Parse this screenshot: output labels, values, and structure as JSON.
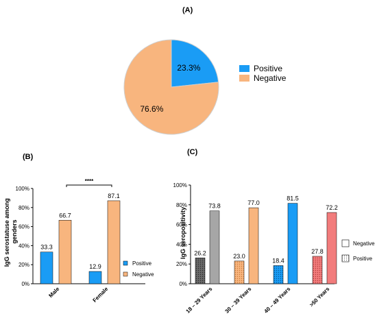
{
  "colors": {
    "positive": "#1a9cf5",
    "negative": "#f8b57e",
    "grey": "#a6a6a6",
    "pink": "#f27c7c"
  },
  "chart_data": [
    {
      "type": "pie",
      "panel": "(A)",
      "categories": [
        "Positive",
        "Negative"
      ],
      "values": [
        23.3,
        76.6
      ],
      "labels": [
        "23.3%",
        "76.6%"
      ],
      "legend": [
        "Positive",
        "Negative"
      ],
      "legend_position": "right"
    },
    {
      "type": "bar",
      "panel": "(B)",
      "categories": [
        "Male",
        "Female"
      ],
      "series": [
        {
          "name": "Positive",
          "values": [
            33.3,
            12.9
          ],
          "labels": [
            "33.3",
            "12.9"
          ]
        },
        {
          "name": "Negative",
          "values": [
            66.7,
            87.1
          ],
          "labels": [
            "66.7",
            "87.1"
          ]
        }
      ],
      "ylabel": "IgG serostatuse among genders",
      "ylim": [
        0,
        100
      ],
      "yticks": [
        "0%",
        "20%",
        "40%",
        "60%",
        "80%",
        "100%"
      ],
      "significance": "****",
      "legend_position": "right"
    },
    {
      "type": "bar",
      "panel": "(C)",
      "categories": [
        "18 – 29 Years",
        "30 – 39 Years",
        "40 – 49 Years",
        ">50 Years"
      ],
      "series": [
        {
          "name": "Positive",
          "values": [
            26.2,
            23.0,
            18.4,
            27.8
          ],
          "labels": [
            "26.2",
            "23.0",
            "18.4",
            "27.8"
          ]
        },
        {
          "name": "Negative",
          "values": [
            73.8,
            77.0,
            81.5,
            72.2
          ],
          "labels": [
            "73.8",
            "77.0",
            "81.5",
            "72.2"
          ]
        }
      ],
      "ylabel": "IgG seropositivity",
      "ylim": [
        0,
        100
      ],
      "yticks": [
        "0%",
        "20%",
        "40%",
        "60%",
        "80%",
        "100%"
      ],
      "legend": [
        "Negative",
        "Positive"
      ],
      "legend_position": "right"
    }
  ]
}
